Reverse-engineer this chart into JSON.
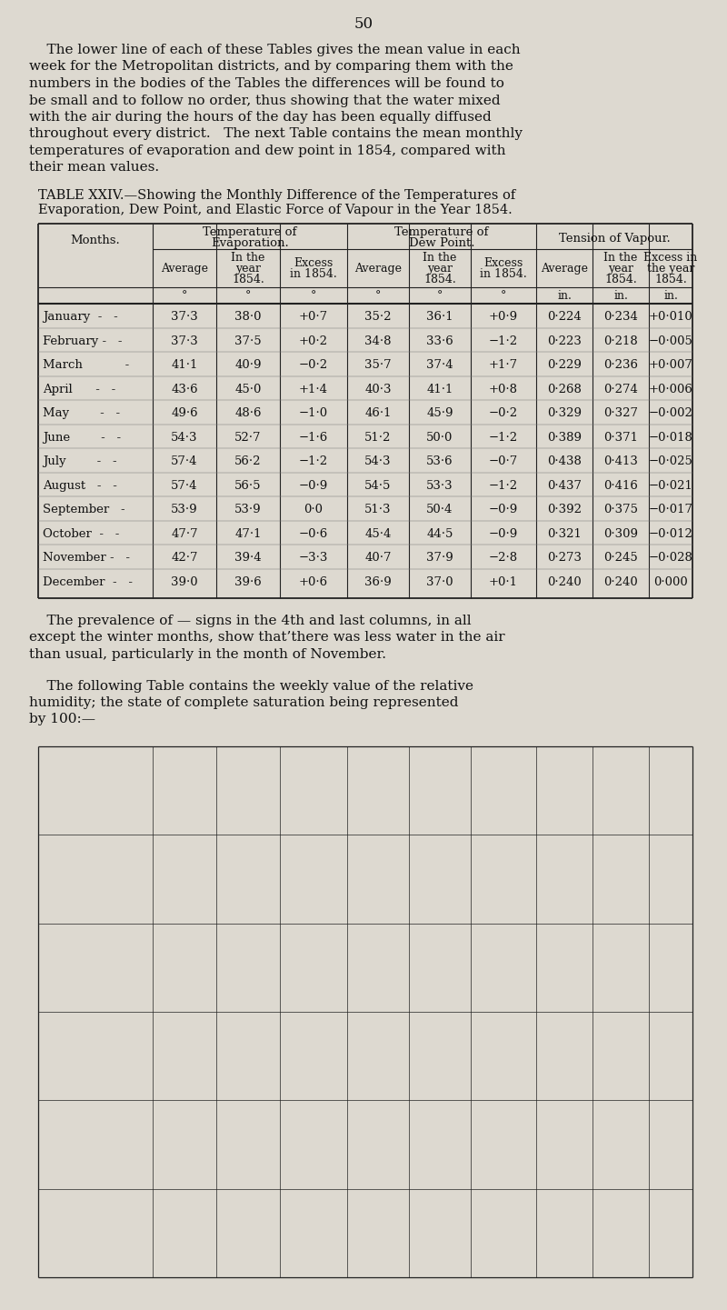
{
  "page_number": "50",
  "bg_color": "#ddd9d0",
  "text_color": "#1a1a1a",
  "intro_lines": [
    "    The lower line of each of these Tables gives the mean value in each",
    "week for the Metropolitan districts, and by comparing them with the",
    "numbers in the bodies of the Tables the differences will be found to",
    "be small and to follow no order, thus showing that the water mixed",
    "with the air during the hours of the day has been equally diffused",
    "throughout every district.   The next Table contains the mean monthly",
    "temperatures of evaporation and dew point in 1854, compared with",
    "their mean values."
  ],
  "table_title_line1": "TABLE XXIV.—Showing the Monthly Difference of the Temperatures of",
  "table_title_line2": "Evaporation, Dew Point, and Elastic Force of Vapour in the Year 1854.",
  "months": [
    "January  -   -",
    "February -   -",
    "March           -",
    "April      -   -",
    "May        -   -",
    "June        -   -",
    "July        -   -",
    "August   -   -",
    "September   -",
    "October  -   -",
    "November -   -",
    "December  -   -"
  ],
  "data": [
    [
      "37·3",
      "38·0",
      "+0·7",
      "35·2",
      "36·1",
      "+0·9",
      "0·224",
      "0·234",
      "+0·010"
    ],
    [
      "37·3",
      "37·5",
      "+0·2",
      "34·8",
      "33·6",
      "−1·2",
      "0·223",
      "0·218",
      "−0·005"
    ],
    [
      "41·1",
      "40·9",
      "−0·2",
      "35·7",
      "37·4",
      "+1·7",
      "0·229",
      "0·236",
      "+0·007"
    ],
    [
      "43·6",
      "45·0",
      "+1·4",
      "40·3",
      "41·1",
      "+0·8",
      "0·268",
      "0·274",
      "+0·006"
    ],
    [
      "49·6",
      "48·6",
      "−1·0",
      "46·1",
      "45·9",
      "−0·2",
      "0·329",
      "0·327",
      "−0·002"
    ],
    [
      "54·3",
      "52·7",
      "−1·6",
      "51·2",
      "50·0",
      "−1·2",
      "0·389",
      "0·371",
      "−0·018"
    ],
    [
      "57·4",
      "56·2",
      "−1·2",
      "54·3",
      "53·6",
      "−0·7",
      "0·438",
      "0·413",
      "−0·025"
    ],
    [
      "57·4",
      "56·5",
      "−0·9",
      "54·5",
      "53·3",
      "−1·2",
      "0·437",
      "0·416",
      "−0·021"
    ],
    [
      "53·9",
      "53·9",
      "0·0",
      "51·3",
      "50·4",
      "−0·9",
      "0·392",
      "0·375",
      "−0·017"
    ],
    [
      "47·7",
      "47·1",
      "−0·6",
      "45·4",
      "44·5",
      "−0·9",
      "0·321",
      "0·309",
      "−0·012"
    ],
    [
      "42·7",
      "39·4",
      "−3·3",
      "40·7",
      "37·9",
      "−2·8",
      "0·273",
      "0·245",
      "−0·028"
    ],
    [
      "39·0",
      "39·6",
      "+0·6",
      "36·9",
      "37·0",
      "+0·1",
      "0·240",
      "0·240",
      "0·000"
    ]
  ],
  "footer1_lines": [
    "    The prevalence of — signs in the 4th and last columns, in all",
    "except the winter months, show that’there was less water in the air",
    "than usual, particularly in the month of November."
  ],
  "footer2_lines": [
    "    The following Table contains the weekly value of the relative",
    "humidity; the state of complete saturation being represented",
    "by 100:—"
  ]
}
